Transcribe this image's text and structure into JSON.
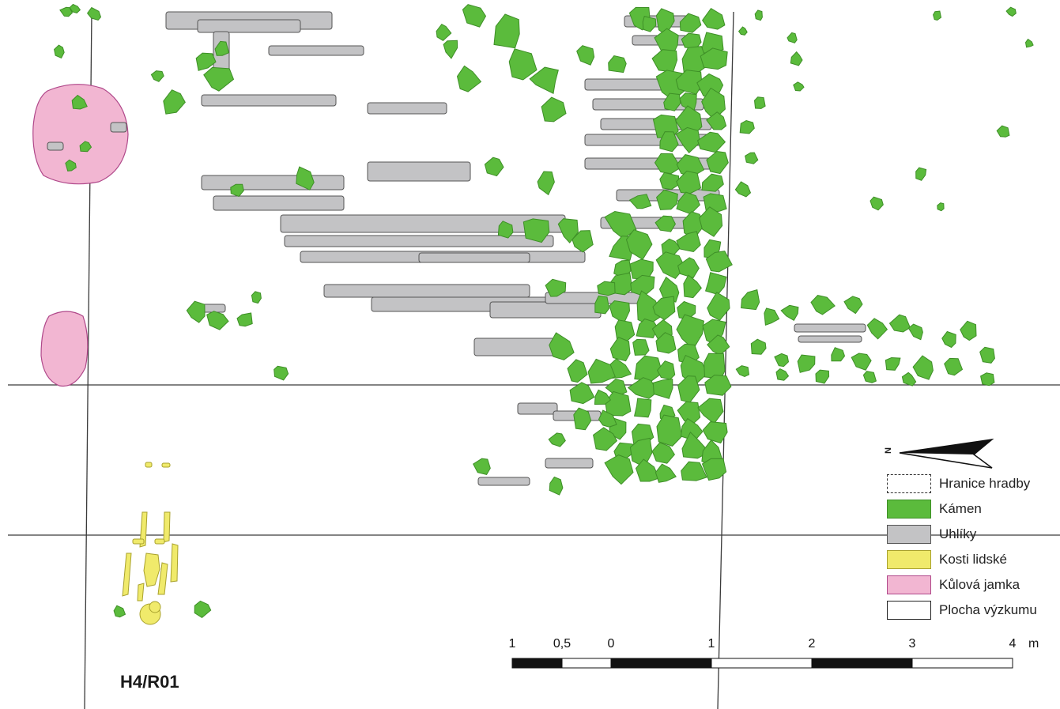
{
  "map": {
    "label": "H4/R01",
    "north_symbol": "N"
  },
  "legend": {
    "items": [
      {
        "key": "hranice",
        "label": "Hranice hradby",
        "fill": "#ffffff",
        "border": "#333333",
        "border_style": "dashed"
      },
      {
        "key": "kamen",
        "label": "Kámen",
        "fill": "#5bbb3c",
        "border": "#3e8f27",
        "border_style": "solid"
      },
      {
        "key": "uhliky",
        "label": "Uhlíky",
        "fill": "#c3c3c5",
        "border": "#555555",
        "border_style": "solid"
      },
      {
        "key": "kosti",
        "label": "Kosti lidské",
        "fill": "#f0ea6b",
        "border": "#a9a22e",
        "border_style": "solid"
      },
      {
        "key": "jamka",
        "label": "Kůlová jamka",
        "fill": "#f2b6d2",
        "border": "#b0488a",
        "border_style": "solid"
      },
      {
        "key": "plocha",
        "label": "Plocha výzkumu",
        "fill": "#ffffff",
        "border": "#222222",
        "border_style": "solid"
      }
    ]
  },
  "scale": {
    "ticks": [
      "1",
      "0,5",
      "0",
      "1",
      "2",
      "3",
      "4"
    ],
    "unit": "m"
  },
  "colors": {
    "stone": "#5bbb3c",
    "charcoal": "#c3c3c5",
    "bone": "#f0ea6b",
    "posthole": "#f2b6d2",
    "line": "#3a3a3a"
  }
}
